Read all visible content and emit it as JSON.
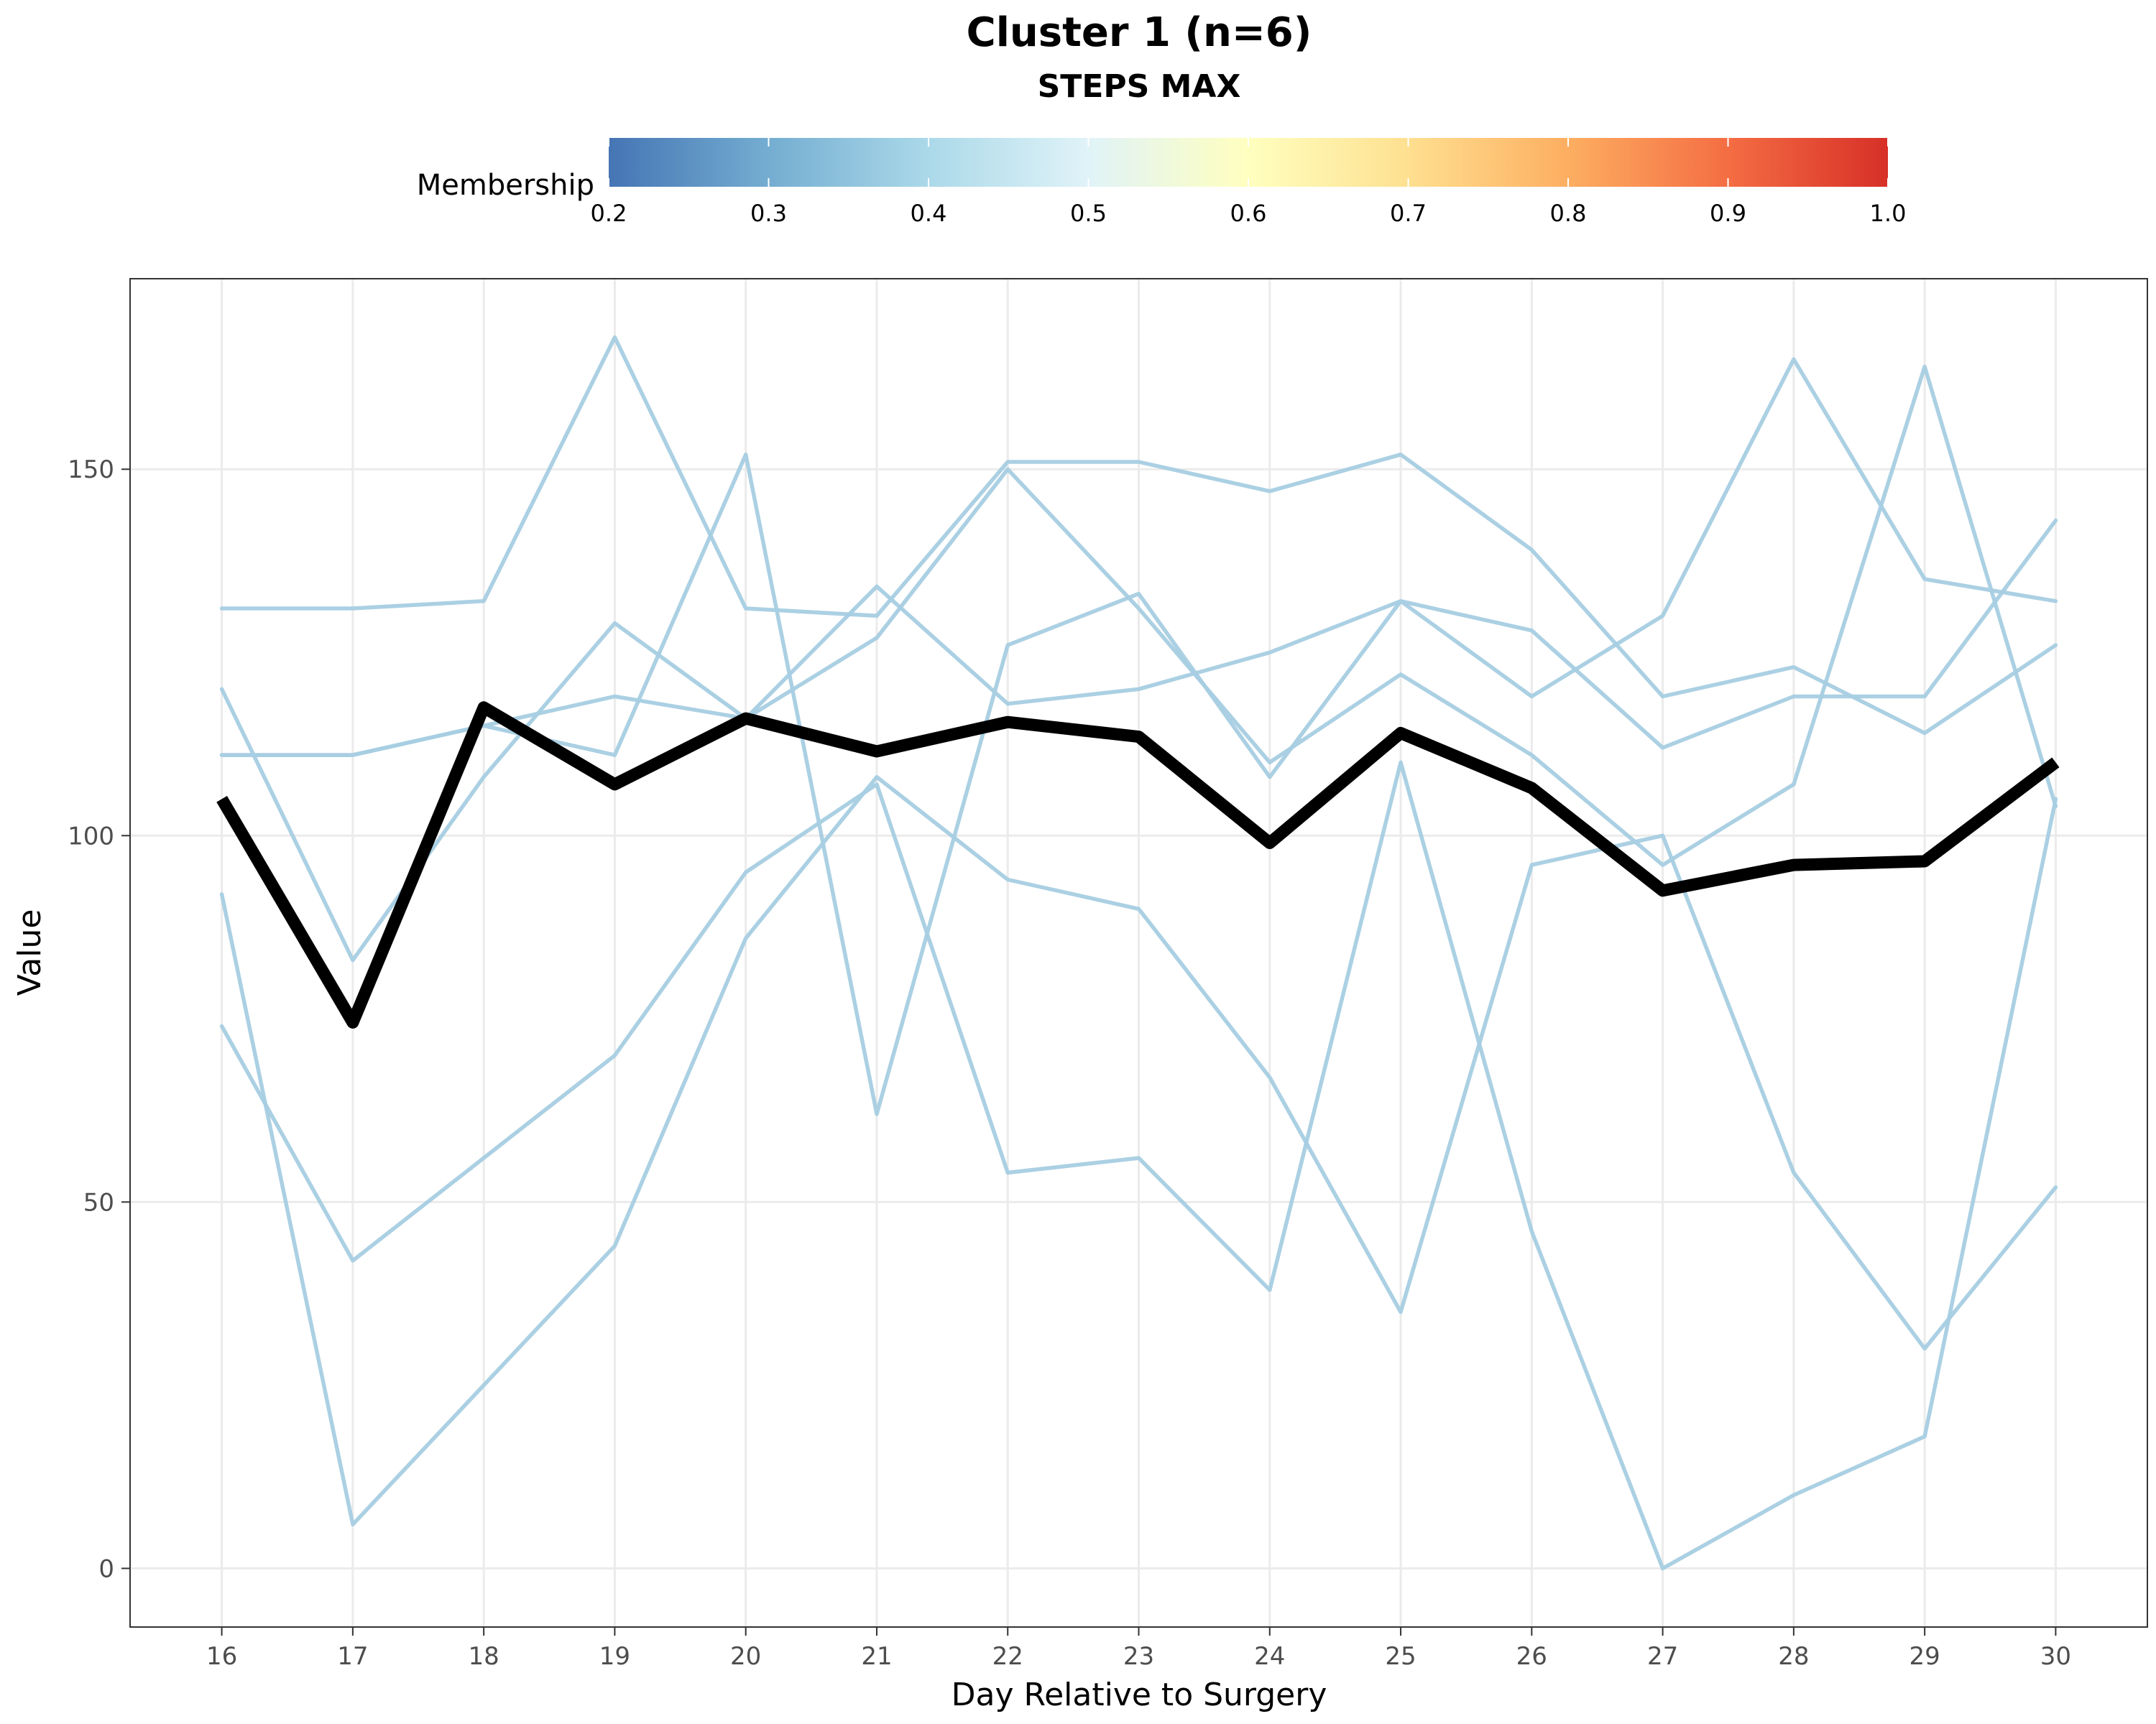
{
  "chart_data": {
    "type": "line",
    "title": "Cluster 1 (n=6)",
    "subtitle": "STEPS MAX",
    "xlabel": "Day Relative to Surgery",
    "ylabel": "Value",
    "x": [
      16,
      17,
      18,
      19,
      20,
      21,
      22,
      23,
      24,
      25,
      26,
      27,
      28,
      29,
      30
    ],
    "xlim": [
      15.3,
      30.7
    ],
    "ylim": [
      -8,
      176
    ],
    "y_ticks": [
      0,
      50,
      100,
      150
    ],
    "grid": true,
    "legend": {
      "title": "Membership",
      "position": "top",
      "ticks": [
        "0.2",
        "0.3",
        "0.4",
        "0.5",
        "0.6",
        "0.7",
        "0.8",
        "0.9",
        "1.0"
      ],
      "range": [
        0.2,
        1.0
      ],
      "colors": [
        "#4575b4",
        "#74add1",
        "#abd9e9",
        "#e0f3f8",
        "#ffffbf",
        "#fee090",
        "#fdae61",
        "#f46d43",
        "#d73027"
      ]
    },
    "member_color": "#a6cde2",
    "centroid_color": "#000000",
    "series": [
      {
        "values": [
          131,
          131,
          132,
          168,
          131,
          130,
          151,
          151,
          147,
          152,
          139,
          119,
          123,
          114,
          126
        ]
      },
      {
        "values": [
          111,
          111,
          115,
          119,
          116,
          127,
          150,
          131,
          110,
          122,
          111,
          96,
          107,
          164,
          104
        ]
      },
      {
        "values": [
          120,
          83,
          108,
          129,
          116,
          134,
          118,
          120,
          125,
          132,
          119,
          130,
          165,
          135,
          132
        ]
      },
      {
        "values": [
          92,
          6,
          25,
          44,
          86,
          108,
          94,
          90,
          67,
          35,
          96,
          100,
          54,
          30,
          52
        ]
      },
      {
        "values": [
          74,
          42,
          56,
          70,
          95,
          107,
          54,
          56,
          38,
          110,
          46,
          0,
          10,
          18,
          105
        ]
      },
      {
        "values": [
          111,
          111,
          115,
          111,
          152,
          62,
          126,
          133,
          108,
          132,
          128,
          112,
          119,
          119,
          143
        ]
      }
    ],
    "centroid": {
      "values": [
        105,
        74.5,
        117.5,
        107,
        116,
        111.5,
        115.5,
        113.5,
        99,
        114,
        106.5,
        92.5,
        96,
        96.5,
        110
      ]
    }
  }
}
